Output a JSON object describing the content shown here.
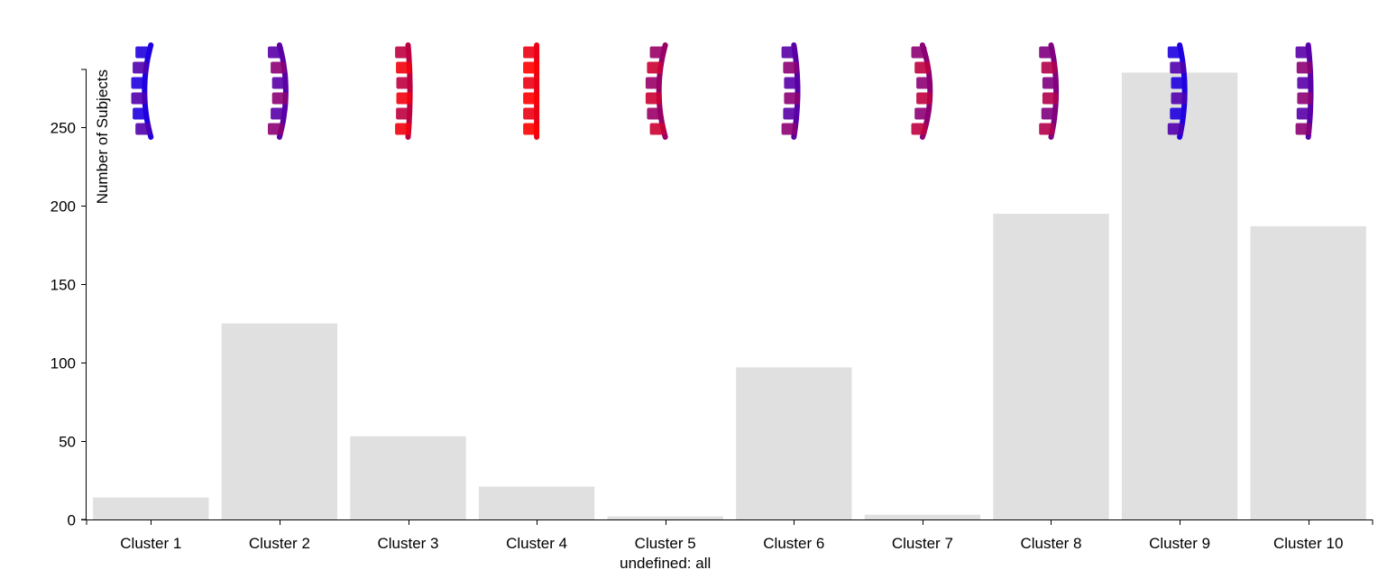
{
  "chart_data": {
    "type": "bar",
    "categories": [
      "Cluster 1",
      "Cluster 2",
      "Cluster 3",
      "Cluster 4",
      "Cluster 5",
      "Cluster 6",
      "Cluster 7",
      "Cluster 8",
      "Cluster 9",
      "Cluster 10"
    ],
    "values": [
      14,
      125,
      53,
      21,
      2,
      97,
      3,
      195,
      285,
      187
    ],
    "ylabel": "Number of Subjects",
    "xlabel": "",
    "ylim": [
      0,
      287
    ],
    "yticks": [
      0,
      50,
      100,
      150,
      200,
      250
    ],
    "annotation": "undefined: all",
    "annotation_category": "Cluster 5",
    "grid": false,
    "glyph_color_mix": [
      0.12,
      0.35,
      0.75,
      0.92,
      0.6,
      0.35,
      0.55,
      0.5,
      0.12,
      0.35
    ],
    "glyph_curve": [
      -1,
      1,
      0.3,
      0,
      -1,
      0.6,
      1.2,
      0.8,
      0.8,
      0.4
    ],
    "colors": {
      "bar": "#e0e0e0",
      "glyph_low": "#0000ff",
      "glyph_high": "#ff0000",
      "axis": "#000000"
    }
  }
}
